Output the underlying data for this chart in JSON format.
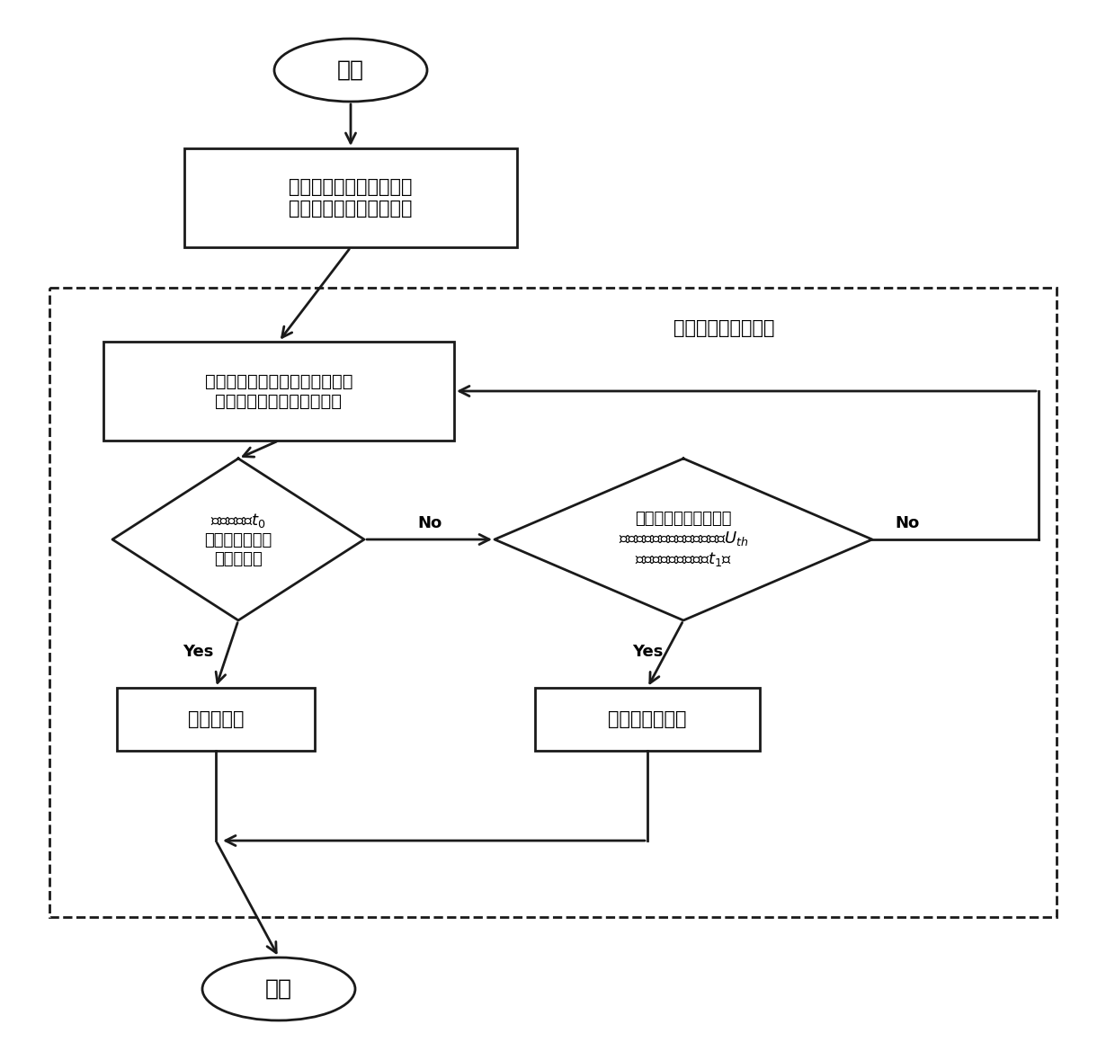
{
  "bg_color": "#ffffff",
  "line_color": "#1a1a1a",
  "text_color": "#000000",
  "start_text": "开始",
  "end_text": "结束",
  "box1_text": "由主动相位偏移扰动模块\n向控制电路注入相角扰动",
  "box2_text": "采集公共连接点处的电压信号，\n由锁相环得到电网频率信号",
  "d1_text": "频率在时间$t_0$\n内持续超出电网\n允许范围？",
  "d2_text": "处于反孤岛保护状态且\n电压幅値绝对値高于阈値电压$U_{th}$\n的累积时间达到时间$t_1$？",
  "box3_text": "反孤岛保护",
  "box4_text": "解除反孤岛保护",
  "module_label": "反孤岛智能检测模块",
  "yes_text": "Yes",
  "no_text": "No"
}
